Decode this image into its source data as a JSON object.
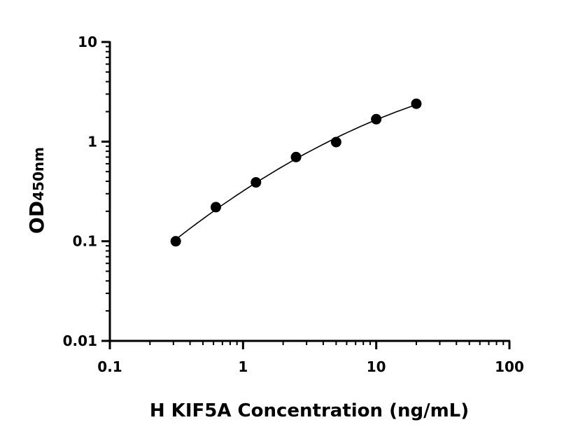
{
  "chart_data": {
    "type": "scatter",
    "title": "",
    "xlabel": "H KIF5A Concentration (ng/mL)",
    "ylabel": "OD",
    "ylabel_subscript": "450nm",
    "xscale": "log",
    "yscale": "log",
    "xlim": [
      0.1,
      100
    ],
    "ylim": [
      0.01,
      10
    ],
    "xticks": [
      "0.1",
      "1",
      "10",
      "100"
    ],
    "yticks": [
      "0.01",
      "0.1",
      "1",
      "10"
    ],
    "grid": false,
    "fit_line": true,
    "color": "#000000",
    "series": [
      {
        "x": [
          0.3125,
          0.625,
          1.25,
          2.5,
          5,
          10,
          20
        ],
        "y": [
          0.1,
          0.22,
          0.39,
          0.7,
          0.99,
          1.68,
          2.4
        ]
      }
    ]
  }
}
